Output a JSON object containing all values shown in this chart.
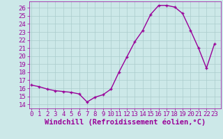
{
  "x": [
    0,
    1,
    2,
    3,
    4,
    5,
    6,
    7,
    8,
    9,
    10,
    11,
    12,
    13,
    14,
    15,
    16,
    17,
    18,
    19,
    20,
    21,
    22,
    23
  ],
  "y": [
    16.4,
    16.2,
    15.9,
    15.7,
    15.6,
    15.5,
    15.3,
    14.3,
    14.9,
    15.2,
    15.9,
    18.0,
    19.9,
    21.8,
    23.2,
    25.2,
    26.3,
    26.3,
    26.1,
    25.3,
    23.2,
    21.0,
    18.5,
    21.5
  ],
  "line_color": "#990099",
  "marker": "+",
  "marker_size": 3.5,
  "marker_lw": 1.0,
  "bg_color": "#cce8e8",
  "grid_color": "#aacccc",
  "xlabel": "Windchill (Refroidissement éolien,°C)",
  "xlabel_color": "#990099",
  "xlabel_fontsize": 7.5,
  "tick_color": "#990099",
  "tick_fontsize": 6.5,
  "ylim": [
    13.5,
    26.8
  ],
  "xlim": [
    -0.3,
    23.8
  ],
  "yticks": [
    14,
    15,
    16,
    17,
    18,
    19,
    20,
    21,
    22,
    23,
    24,
    25,
    26
  ],
  "xticks": [
    0,
    1,
    2,
    3,
    4,
    5,
    6,
    7,
    8,
    9,
    10,
    11,
    12,
    13,
    14,
    15,
    16,
    17,
    18,
    19,
    20,
    21,
    22,
    23
  ],
  "line_width": 1.0
}
